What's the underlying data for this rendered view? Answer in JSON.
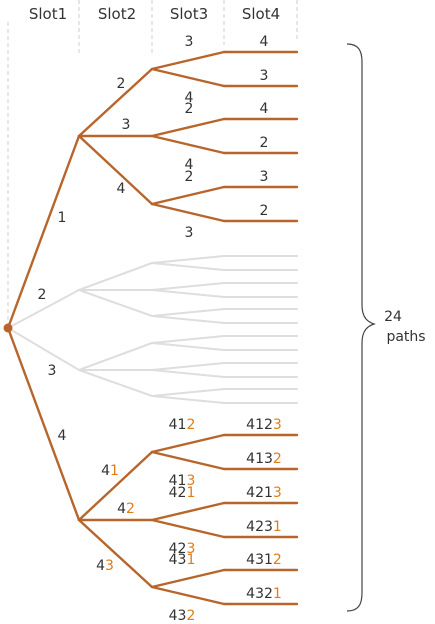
{
  "headers": [
    "Slot1",
    "Slot2",
    "Slot3",
    "Slot4"
  ],
  "colors": {
    "path": "#b8652c",
    "faded": "#dedede",
    "highlight": "#e07d17",
    "text": "#333333",
    "divider": "#cfcfcf"
  },
  "root_branches": [
    {
      "label": "1",
      "active": true
    },
    {
      "label": "2",
      "active": false
    },
    {
      "label": "3",
      "active": false
    },
    {
      "label": "4",
      "active": true
    }
  ],
  "subtree_1": {
    "level2": [
      {
        "label": "2",
        "level3": [
          {
            "label": "3",
            "leaves": [
              "4"
            ]
          },
          {
            "label": "4",
            "leaves": [
              "3"
            ]
          }
        ]
      },
      {
        "label": "3",
        "level3": [
          {
            "label": "2",
            "leaves": [
              "4"
            ]
          },
          {
            "label": "4",
            "leaves": [
              "2"
            ]
          }
        ]
      },
      {
        "label": "4",
        "level3": [
          {
            "label": "2",
            "leaves": [
              "3"
            ]
          },
          {
            "label": "3",
            "leaves": [
              "2"
            ]
          }
        ]
      }
    ]
  },
  "subtree_4": {
    "level2": [
      {
        "prefix": "4",
        "digit": "1",
        "level3": [
          {
            "prefix": "41",
            "digit": "2",
            "leaf_prefix": "412",
            "leaf_digit": "3"
          },
          {
            "prefix": "41",
            "digit": "3",
            "leaf_prefix": "413",
            "leaf_digit": "2"
          }
        ]
      },
      {
        "prefix": "4",
        "digit": "2",
        "level3": [
          {
            "prefix": "42",
            "digit": "1",
            "leaf_prefix": "421",
            "leaf_digit": "3"
          },
          {
            "prefix": "42",
            "digit": "3",
            "leaf_prefix": "423",
            "leaf_digit": "1"
          }
        ]
      },
      {
        "prefix": "4",
        "digit": "3",
        "level3": [
          {
            "prefix": "43",
            "digit": "1",
            "leaf_prefix": "431",
            "leaf_digit": "2"
          },
          {
            "prefix": "43",
            "digit": "2",
            "leaf_prefix": "432",
            "leaf_digit": "1"
          }
        ]
      }
    ]
  },
  "total": {
    "count": "24",
    "unit": "paths"
  }
}
